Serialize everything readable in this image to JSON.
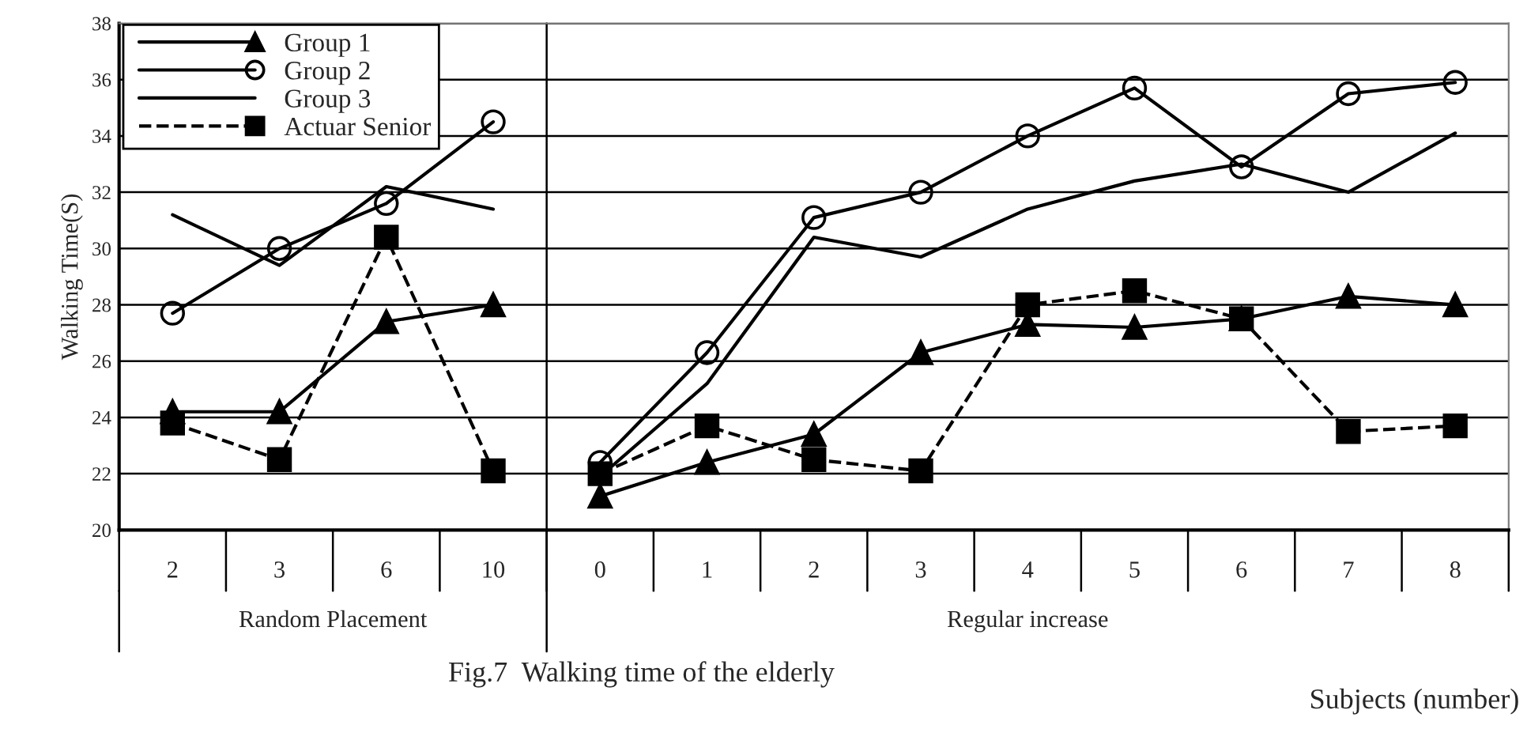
{
  "chart_data": {
    "type": "line",
    "categories": [
      "2",
      "3",
      "6",
      "10",
      "0",
      "1",
      "2",
      "3",
      "4",
      "5",
      "6",
      "7",
      "8"
    ],
    "xlabel": "Subjects (number)",
    "ylabel": "Walking Time(S)",
    "annotations": [
      "Random Placement",
      "Regular increase",
      "Fig.7  Walking time of the elderly"
    ],
    "ylim": [
      20,
      38
    ],
    "yticks": [
      20,
      22,
      24,
      26,
      28,
      30,
      32,
      34,
      36,
      38
    ],
    "grid": "y",
    "legend": "top left",
    "series": [
      {
        "name": "Group 1",
        "color": "#000000",
        "marker": "triangle",
        "line_style": "solid",
        "values": [
          24.2,
          24.2,
          27.4,
          28.0,
          21.2,
          22.4,
          23.4,
          26.3,
          27.3,
          27.2,
          27.5,
          28.3,
          28.0
        ]
      },
      {
        "name": "Group 2",
        "color": "#000000",
        "marker": "circle",
        "line_style": "solid",
        "values": [
          27.7,
          30.0,
          31.6,
          34.5,
          22.4,
          26.3,
          31.1,
          32.0,
          34.0,
          35.7,
          32.9,
          35.5,
          35.9
        ]
      },
      {
        "name": "Group 3",
        "color": "#000000",
        "marker": "none",
        "line_style": "solid",
        "values": [
          31.2,
          29.4,
          32.2,
          31.4,
          21.9,
          25.2,
          30.4,
          29.7,
          31.4,
          32.4,
          33.0,
          32.0,
          34.1
        ]
      },
      {
        "name": "Actuar Senior",
        "color": "#000000",
        "marker": "square",
        "line_style": "dashed",
        "values": [
          23.8,
          22.5,
          30.4,
          22.1,
          22.0,
          23.7,
          22.5,
          22.1,
          28.0,
          28.5,
          27.5,
          23.5,
          23.7
        ]
      }
    ]
  }
}
